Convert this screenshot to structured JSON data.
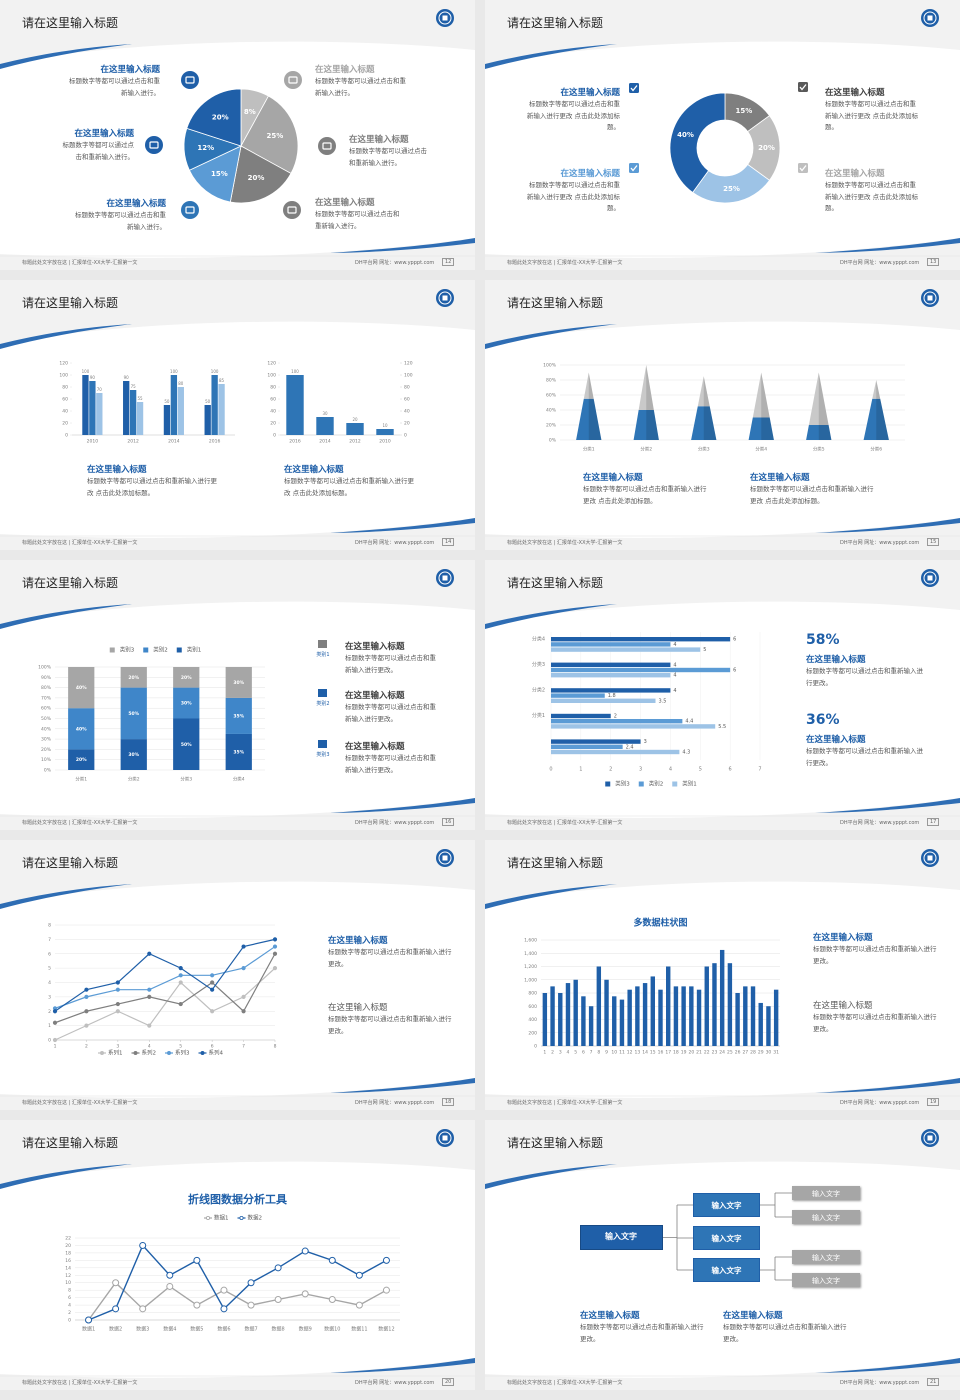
{
  "slides": [
    {
      "title": "请在这里输入标题",
      "page": "12",
      "footer": {
        "left": "标题此处文字放在这 | 汇报单位-XX大学-汇报第一文",
        "site": "DH平台网 网址：www.ypppt.com"
      },
      "blocks": [
        {
          "title": "在这里输入标题",
          "body": "标题数字等都可以通过点击和重新输入进行。"
        },
        {
          "title": "在这里输入标题",
          "body": "标题数字等都可以通过点击和重新输入进行。"
        },
        {
          "title": "在这里输入标题",
          "body": "标题数字等都可以通过点击和重新输入进行。"
        },
        {
          "title": "在这里输入标题",
          "body": "标题数字等都可以通过点击和重新输入进行。"
        },
        {
          "title": "在这里输入标题",
          "body": "标题数字等都可以通过点击和重新输入进行。"
        },
        {
          "title": "在这里输入标题",
          "body": "标题数字等都可以通过点击和重新输入进行。"
        }
      ],
      "charts": [
        {
          "type": "pie",
          "values": [
            8,
            25,
            20,
            15,
            12,
            20
          ],
          "value_labels": [
            "8%",
            "25%",
            "20%",
            "15%",
            "12%",
            "20%"
          ],
          "colors": [
            "#bfbfbf",
            "#a6a6a6",
            "#7f7f7f",
            "#5b9bd5",
            "#2e75b6",
            "#1f5fa8"
          ]
        }
      ]
    },
    {
      "title": "请在这里输入标题",
      "page": "13",
      "footer": {
        "left": "标题此处文字放在这 | 汇报单位-XX大学-汇报第一文",
        "site": "DH平台网 网址：www.ypppt.com"
      },
      "blocks": [
        {
          "title": "在这里输入标题",
          "body": "标题数字等都可以通过点击和重新输入进行更改 点击此处添加标题。"
        },
        {
          "title": "在这里输入标题",
          "body": "标题数字等都可以通过点击和重新输入进行更改 点击此处添加标题。"
        },
        {
          "title": "在这里输入标题",
          "body": "标题数字等都可以通过点击和重新输入进行更改 点击此处添加标题。"
        },
        {
          "title": "在这里输入标题",
          "body": "标题数字等都可以通过点击和重新输入进行更改 点击此处添加标题。"
        }
      ],
      "charts": [
        {
          "type": "donut",
          "values": [
            15,
            20,
            25,
            40
          ],
          "value_labels": [
            "15%",
            "20%",
            "25%",
            "40%"
          ],
          "colors": [
            "#7f7f7f",
            "#bfbfbf",
            "#9dc3e6",
            "#1f5fa8"
          ]
        }
      ]
    },
    {
      "title": "请在这里输入标题",
      "page": "14",
      "footer": {
        "left": "标题此处文字放在这 | 汇报单位-XX大学-汇报第一文",
        "site": "DH平台网 网址：www.ypppt.com"
      },
      "blocks": [
        {
          "title": "在这里输入标题",
          "body": "标题数字等都可以通过点击和重新输入进行更改 点击此处添加标题。"
        },
        {
          "title": "在这里输入标题",
          "body": "标题数字等都可以通过点击和重新输入进行更改 点击此处添加标题。"
        }
      ],
      "charts": [
        {
          "type": "bar",
          "categories": [
            "2010",
            "2012",
            "2014",
            "2016"
          ],
          "series": [
            {
              "color": "#1f5fa8",
              "values": [
                100,
                90,
                50,
                50
              ]
            },
            {
              "color": "#2e75b6",
              "values": [
                90,
                75,
                100,
                100
              ]
            },
            {
              "color": "#9dc3e6",
              "values": [
                70,
                55,
                80,
                85
              ]
            }
          ],
          "ylim": [
            0,
            120
          ],
          "yticks": [
            0,
            20,
            40,
            60,
            80,
            100,
            120
          ],
          "grid": false,
          "data_labels": true
        },
        {
          "type": "bar",
          "categories": [
            "2016",
            "2014",
            "2012",
            "2010"
          ],
          "values": [
            100,
            30,
            20,
            10
          ],
          "color": "#2e75b6",
          "ylim": [
            0,
            120
          ],
          "yticks": [
            0,
            20,
            40,
            60,
            80,
            100,
            120
          ],
          "y2lim": [
            0,
            120
          ],
          "y2ticks": [
            0,
            20,
            40,
            60,
            80,
            100,
            120
          ],
          "grid": false,
          "data_labels": true
        }
      ]
    },
    {
      "title": "请在这里输入标题",
      "page": "15",
      "footer": {
        "left": "标题此处文字放在这 | 汇报单位-XX大学-汇报第一文",
        "site": "DH平台网 网址：www.ypppt.com"
      },
      "blocks": [
        {
          "title": "在这里输入标题",
          "body": "标题数字等都可以通过点击和重新输入进行更改 点击此处添加标题。"
        },
        {
          "title": "在这里输入标题",
          "body": "标题数字等都可以通过点击和重新输入进行更改 点击此处添加标题。"
        }
      ],
      "charts": [
        {
          "type": "cone",
          "categories": [
            "分类1",
            "分类2",
            "分类3",
            "分类4",
            "分类5",
            "分类6"
          ],
          "series": [
            {
              "color": "#2e75b6",
              "values": [
                55,
                40,
                45,
                30,
                20,
                55
              ]
            },
            {
              "color": "#c9c9c9",
              "values": [
                35,
                60,
                40,
                60,
                70,
                25
              ]
            }
          ],
          "ylim": [
            0,
            100
          ],
          "yticks": [
            {
              "value": 0,
              "label": "0%"
            },
            {
              "value": 20,
              "label": "20%"
            },
            {
              "value": 40,
              "label": "40%"
            },
            {
              "value": 60,
              "label": "60%"
            },
            {
              "value": 80,
              "label": "80%"
            },
            {
              "value": 100,
              "label": "100%"
            }
          ],
          "grid": true
        }
      ]
    },
    {
      "title": "请在这里输入标题",
      "page": "16",
      "footer": {
        "left": "标题此处文字放在这 | 汇报单位-XX大学-汇报第一文",
        "site": "DH平台网 网址：www.ypppt.com"
      },
      "blocks": [
        {
          "title": "在这里输入标题",
          "body": "标题数字等都可以通过点击和重新输入进行更改。",
          "icon_label": "类别1"
        },
        {
          "title": "在这里输入标题",
          "body": "标题数字等都可以通过点击和重新输入进行更改。",
          "icon_label": "类别2"
        },
        {
          "title": "在这里输入标题",
          "body": "标题数字等都可以通过点击和重新输入进行更改。",
          "icon_label": "类别3"
        }
      ],
      "charts": [
        {
          "type": "stacked_percent",
          "categories": [
            "分类1",
            "分类2",
            "分类3",
            "分类4"
          ],
          "series": [
            {
              "name": "类别1",
              "color": "#1f5fa8",
              "values": [
                20,
                30,
                50,
                35
              ],
              "value_labels": [
                "20%",
                "30%",
                "50%",
                "35%"
              ]
            },
            {
              "name": "类别2",
              "color": "#3f86c9",
              "values": [
                40,
                50,
                30,
                35
              ],
              "value_labels": [
                "40%",
                "50%",
                "30%",
                "35%"
              ]
            },
            {
              "name": "类别3",
              "color": "#a6a6a6",
              "values": [
                40,
                20,
                20,
                30
              ],
              "value_labels": [
                "40%",
                "20%",
                "20%",
                "30%"
              ]
            }
          ],
          "ylim": [
            0,
            100
          ],
          "yticks": [
            {
              "value": 0,
              "label": "0%"
            },
            {
              "value": 10,
              "label": "10%"
            },
            {
              "value": 20,
              "label": "20%"
            },
            {
              "value": 30,
              "label": "30%"
            },
            {
              "value": 40,
              "label": "40%"
            },
            {
              "value": 50,
              "label": "50%"
            },
            {
              "value": 60,
              "label": "60%"
            },
            {
              "value": 70,
              "label": "70%"
            },
            {
              "value": 80,
              "label": "80%"
            },
            {
              "value": 90,
              "label": "90%"
            },
            {
              "value": 100,
              "label": "100%"
            }
          ],
          "grid": true,
          "legend": "top"
        }
      ]
    },
    {
      "title": "请在这里输入标题",
      "page": "17",
      "footer": {
        "left": "标题此处文字放在这 | 汇报单位-XX大学-汇报第一文",
        "site": "DH平台网 网址：www.ypppt.com"
      },
      "blocks": [
        {
          "stat": "58%",
          "title": "在这里输入标题",
          "body": "标题数字等都可以通过点击和重新输入进行更改。"
        },
        {
          "stat": "36%",
          "title": "在这里输入标题",
          "body": "标题数字等都可以通过点击和重新输入进行更改。"
        }
      ],
      "charts": [
        {
          "type": "hbar",
          "categories": [
            null,
            "分类1",
            "分类2",
            "分类3",
            "分类4"
          ],
          "series": [
            {
              "name": "类别3",
              "color": "#1f5fa8",
              "values": [
                3,
                2,
                4,
                4,
                6
              ]
            },
            {
              "name": "类别2",
              "color": "#5b9bd5",
              "values": [
                2.4,
                4.4,
                1.8,
                6,
                4
              ]
            },
            {
              "name": "类别1",
              "color": "#9dc3e6",
              "values": [
                4.3,
                5.5,
                3.5,
                4,
                5
              ]
            }
          ],
          "xlim": [
            0,
            7
          ],
          "xticks": [
            0,
            1,
            2,
            3,
            4,
            5,
            6,
            7
          ],
          "grid": true,
          "legend": "bottom",
          "data_labels": true
        }
      ]
    },
    {
      "title": "请在这里输入标题",
      "page": "18",
      "footer": {
        "left": "标题此处文字放在这 | 汇报单位-XX大学-汇报第一文",
        "site": "DH平台网 网址：www.ypppt.com"
      },
      "blocks": [
        {
          "title": "在这里输入标题",
          "body": "标题数字等都可以通过点击和重新输入进行更改。"
        },
        {
          "title": "在这里输入标题",
          "body": "标题数字等都可以通过点击和重新输入进行更改。"
        }
      ],
      "charts": [
        {
          "type": "line",
          "x": [
            1,
            2,
            3,
            4,
            5,
            6,
            7,
            8
          ],
          "series": [
            {
              "name": "系列1",
              "color": "#bfbfbf",
              "values": [
                0,
                1,
                2,
                1,
                4,
                2,
                3,
                5
              ]
            },
            {
              "name": "系列2",
              "color": "#7f7f7f",
              "values": [
                1.2,
                2,
                2.5,
                3,
                2.5,
                4,
                2,
                6
              ]
            },
            {
              "name": "系列3",
              "color": "#5b9bd5",
              "values": [
                2.2,
                3,
                3.5,
                3.5,
                4.5,
                4.5,
                5,
                6.5
              ]
            },
            {
              "name": "系列4",
              "color": "#1f5fa8",
              "values": [
                2,
                3.5,
                4,
                6,
                5,
                3.5,
                6.5,
                7
              ]
            }
          ],
          "xlim": [
            1,
            8
          ],
          "xticks": [
            1,
            2,
            3,
            4,
            5,
            6,
            7,
            8
          ],
          "ylim": [
            0,
            8
          ],
          "yticks": [
            0,
            1,
            2,
            3,
            4,
            5,
            6,
            7,
            8
          ],
          "grid": true,
          "legend": "bottom",
          "markers": "filled"
        }
      ]
    },
    {
      "title": "请在这里输入标题",
      "page": "19",
      "footer": {
        "left": "标题此处文字放在这 | 汇报单位-XX大学-汇报第一文",
        "site": "DH平台网 网址：www.ypppt.com"
      },
      "blocks": [
        {
          "title": "在这里输入标题",
          "body": "标题数字等都可以通过点击和重新输入进行更改。"
        },
        {
          "title": "在这里输入标题",
          "body": "标题数字等都可以通过点击和重新输入进行更改。"
        }
      ],
      "charts": [
        {
          "type": "bar",
          "title": "多数据柱状图",
          "categories": [
            "1",
            "2",
            "3",
            "4",
            "5",
            "6",
            "7",
            "8",
            "9",
            "10",
            "11",
            "12",
            "13",
            "14",
            "15",
            "16",
            "17",
            "18",
            "19",
            "20",
            "21",
            "22",
            "23",
            "24",
            "25",
            "26",
            "27",
            "28",
            "29",
            "30",
            "31"
          ],
          "values": [
            800,
            900,
            800,
            950,
            1000,
            750,
            600,
            1200,
            1000,
            750,
            700,
            850,
            900,
            950,
            1050,
            850,
            1200,
            900,
            900,
            900,
            850,
            1200,
            1250,
            1450,
            1250,
            800,
            900,
            900,
            650,
            600,
            850
          ],
          "color": "#1f5fa8",
          "ylim": [
            0,
            1600
          ],
          "yticks": [
            0,
            200,
            400,
            600,
            800,
            {
              "value": 1000,
              "label": "1,000"
            },
            {
              "value": 1200,
              "label": "1,200"
            },
            {
              "value": 1400,
              "label": "1,400"
            },
            {
              "value": 1600,
              "label": "1,600"
            }
          ],
          "grid": true,
          "data_labels": false
        }
      ]
    },
    {
      "title": "请在这里输入标题",
      "page": "20",
      "footer": {
        "left": "标题此处文字放在这 | 汇报单位-XX大学-汇报第一文",
        "site": "DH平台网 网址：www.ypppt.com"
      },
      "blocks": [],
      "charts": [
        {
          "type": "line",
          "title": "折线图数据分析工具",
          "categories": [
            "数据1",
            "数据2",
            "数据3",
            "数据4",
            "数据5",
            "数据6",
            "数据7",
            "数据8",
            "数据9",
            "数据10",
            "数据11",
            "数据12"
          ],
          "series": [
            {
              "name": "数据1",
              "color": "#a6a6a6",
              "values": [
                0,
                10,
                3,
                9,
                4,
                8,
                4,
                5.5,
                7,
                5.5,
                4,
                8
              ]
            },
            {
              "name": "数据2",
              "color": "#1f5fa8",
              "values": [
                0,
                3,
                20,
                12,
                16,
                3,
                10,
                14,
                18.5,
                16,
                12,
                16
              ]
            }
          ],
          "ylim": [
            0,
            22
          ],
          "yticks": [
            0,
            2,
            4,
            6,
            8,
            10,
            12,
            14,
            16,
            18,
            20,
            22
          ],
          "grid": true,
          "legend": "top",
          "markers": "hollow"
        }
      ]
    },
    {
      "title": "请在这里输入标题",
      "page": "21",
      "footer": {
        "left": "标题此处文字放在这 | 汇报单位-XX大学-汇报第一文",
        "site": "DH平台网 网址：www.ypppt.com"
      },
      "blocks": [
        {
          "title": "在这里输入标题",
          "body": "标题数字等都可以通过点击和重新输入进行更改。"
        },
        {
          "title": "在这里输入标题",
          "body": "标题数字等都可以通过点击和重新输入进行更改。"
        }
      ],
      "diagram": {
        "root": "输入文字",
        "branches": [
          "输入文字",
          "输入文字",
          "输入文字"
        ],
        "leaves": [
          "输入文字",
          "输入文字",
          "输入文字",
          "输入文字"
        ]
      }
    }
  ]
}
